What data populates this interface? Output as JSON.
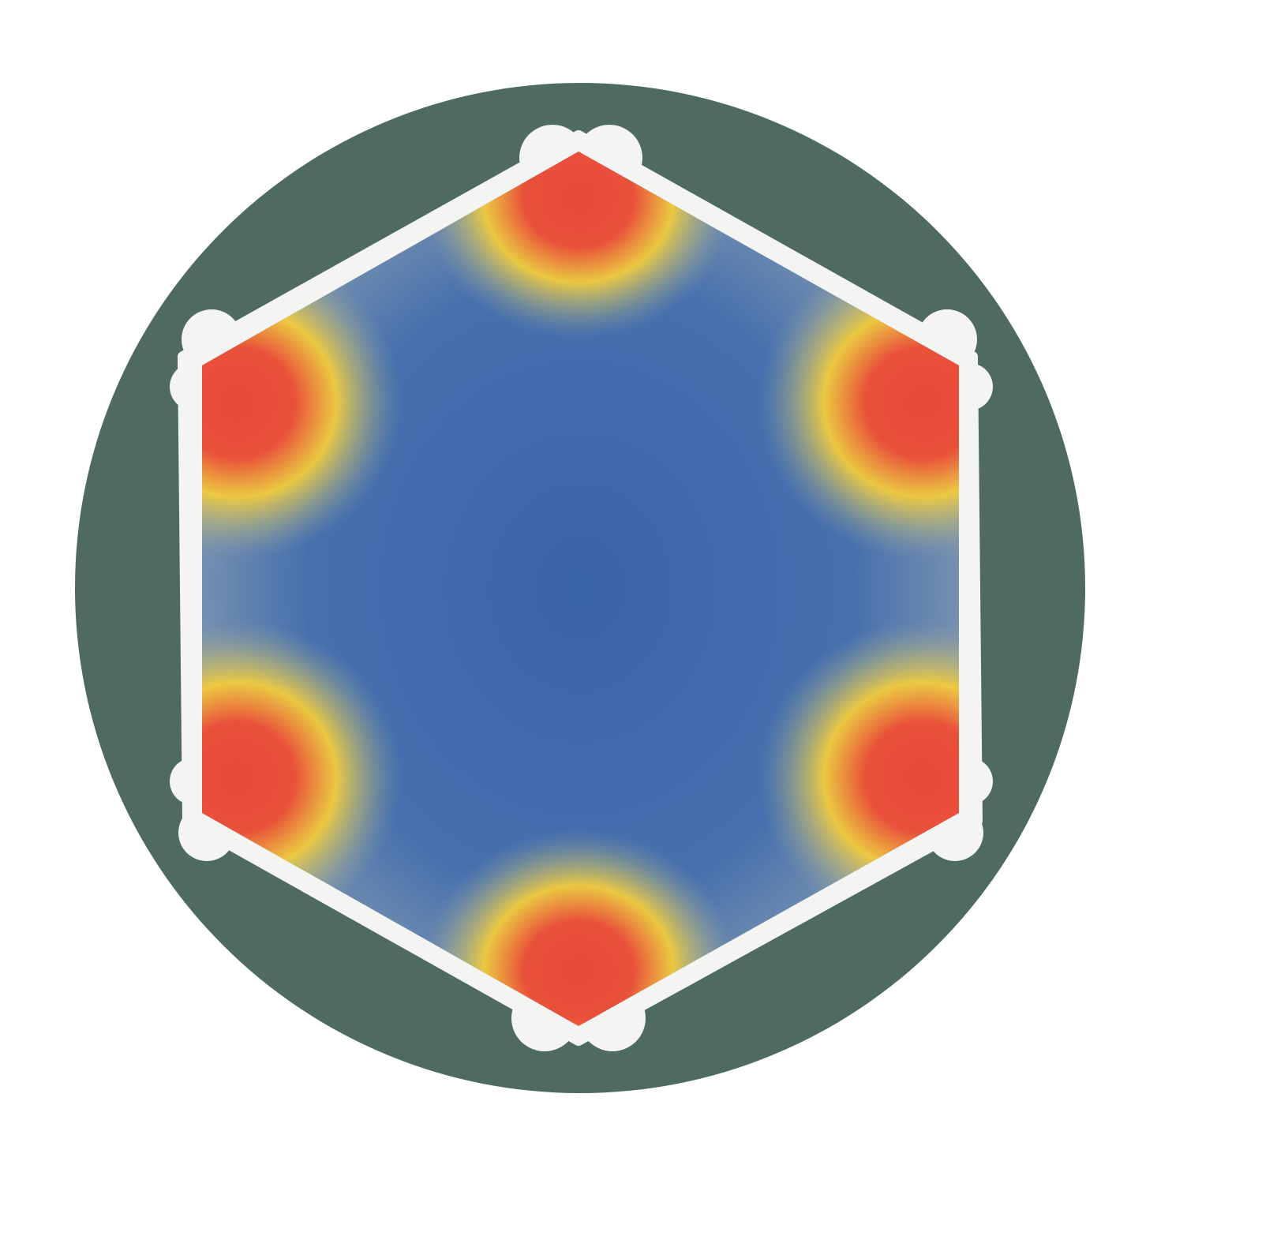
{
  "figure": {
    "type": "hexagon-socket-stress-map",
    "colors": {
      "background": "#ffffff",
      "outer_ring": "#4e6a62",
      "socket_outline": "#f4f4f2",
      "low_stress": "#3d67a8",
      "mid_stress": "#f2cc3c",
      "high_stress": "#e8483a"
    },
    "hotspots": [
      "top",
      "upper-right",
      "lower-right",
      "bottom",
      "lower-left",
      "upper-left"
    ]
  }
}
